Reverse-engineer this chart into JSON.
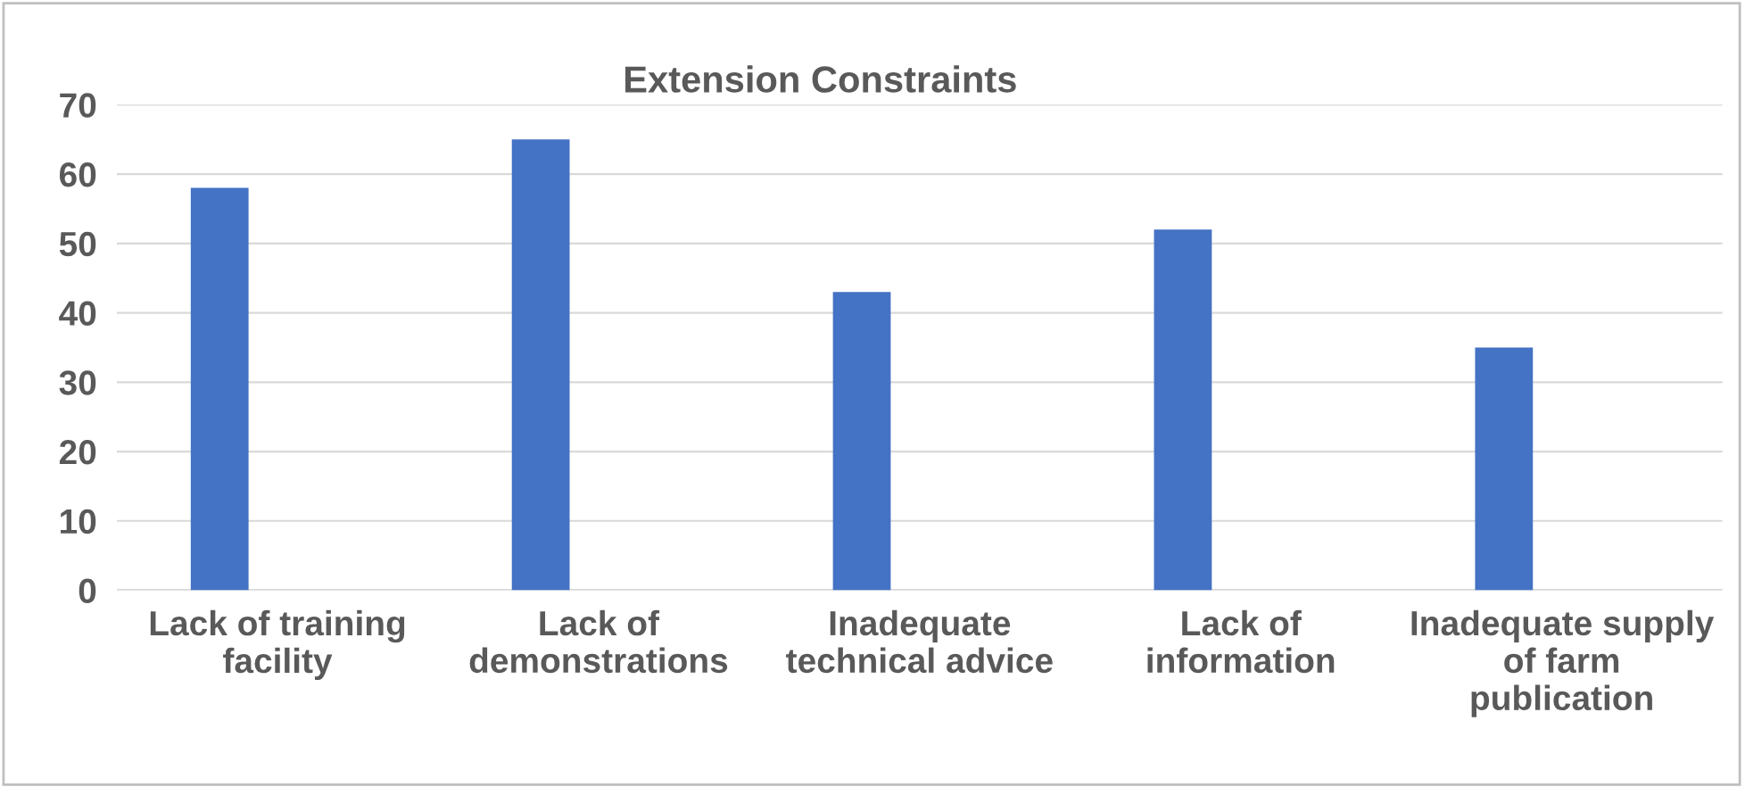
{
  "chart_data": {
    "type": "bar",
    "title": "Extension Constraints",
    "categories": [
      "Lack of training facility",
      "Lack of demonstrations",
      "Inadequate technical advice",
      "Lack of information",
      "Inadequate supply of farm publication"
    ],
    "values": [
      58,
      65,
      43,
      52,
      35
    ],
    "color": "#4472c4",
    "ylim": [
      0,
      70
    ],
    "yticks": [
      0,
      10,
      20,
      30,
      40,
      50,
      60,
      70
    ],
    "grid": "y"
  }
}
